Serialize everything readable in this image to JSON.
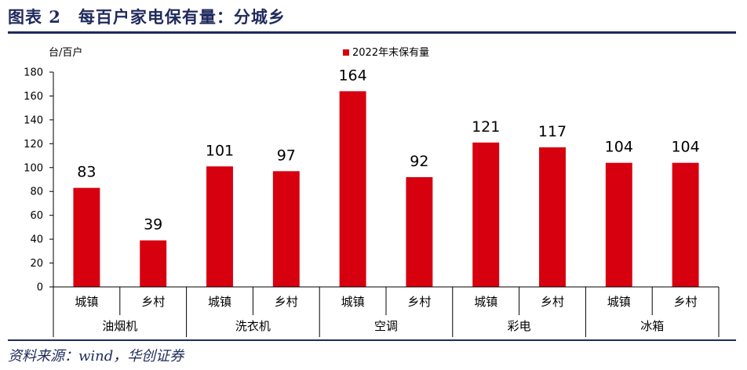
{
  "figure": {
    "title": "图表 2　每百户家电保有量：分城乡",
    "source": "资料来源：wind，华创证券"
  },
  "chart_data": {
    "type": "bar",
    "ylabel": "台/百户",
    "ylim": [
      0,
      180
    ],
    "yticks": [
      0,
      20,
      40,
      60,
      80,
      100,
      120,
      140,
      160,
      180
    ],
    "grid": false,
    "legend": "top-center",
    "groups": [
      "油烟机",
      "洗衣机",
      "空调",
      "彩电",
      "冰箱"
    ],
    "categories": [
      "城镇",
      "乡村",
      "城镇",
      "乡村",
      "城镇",
      "乡村",
      "城镇",
      "乡村",
      "城镇",
      "乡村"
    ],
    "series": [
      {
        "name": "2022年末保有量",
        "color": "#d7000f",
        "values": [
          83,
          39,
          101,
          97,
          164,
          92,
          121,
          117,
          104,
          104
        ]
      }
    ]
  }
}
